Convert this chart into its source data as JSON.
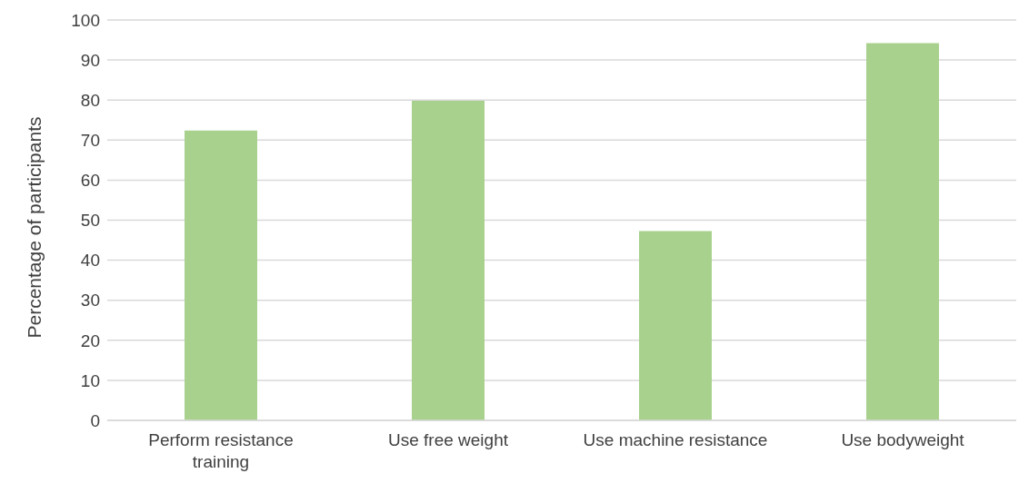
{
  "chart_data": {
    "type": "bar",
    "ylabel": "Percentage of participants",
    "categories": [
      "Perform resistance training",
      "Use free weight",
      "Use machine resistance",
      "Use bodyweight"
    ],
    "values": [
      72.4,
      79.8,
      47.3,
      94.2
    ],
    "color": "#a9d18e",
    "ylim": [
      0,
      100
    ],
    "yticks": [
      0,
      10,
      20,
      30,
      40,
      50,
      60,
      70,
      80,
      90,
      100
    ],
    "grid": "y"
  }
}
